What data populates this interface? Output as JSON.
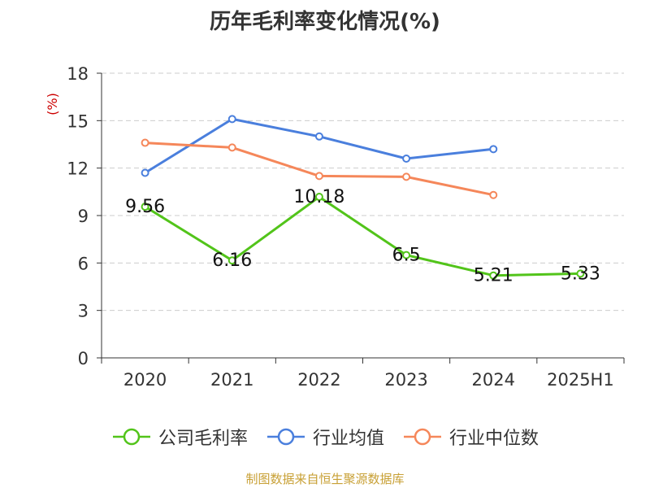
{
  "chart_data": {
    "type": "line",
    "title": "历年毛利率变化情况(%)",
    "ylabel": "(%)",
    "ylim": [
      0,
      18
    ],
    "yticks": [
      0,
      3,
      6,
      9,
      12,
      15,
      18
    ],
    "grid": true,
    "legend_position": "bottom",
    "categories": [
      "2020",
      "2021",
      "2022",
      "2023",
      "2024",
      "2025H1"
    ],
    "series": [
      {
        "name": "公司毛利率",
        "color": "#52c41a",
        "values": [
          9.56,
          6.16,
          10.18,
          6.5,
          5.21,
          5.33
        ],
        "labels": [
          "9.56",
          "6.16",
          "10.18",
          "6.5",
          "5.21",
          "5.33"
        ]
      },
      {
        "name": "行业均值",
        "color": "#4a7fdd",
        "values": [
          11.7,
          15.1,
          14.0,
          12.6,
          13.2,
          null
        ]
      },
      {
        "name": "行业中位数",
        "color": "#f5875a",
        "values": [
          13.6,
          13.3,
          11.5,
          11.45,
          10.3,
          null
        ]
      }
    ]
  },
  "footer": {
    "source": "制图数据来自恒生聚源数据库"
  }
}
